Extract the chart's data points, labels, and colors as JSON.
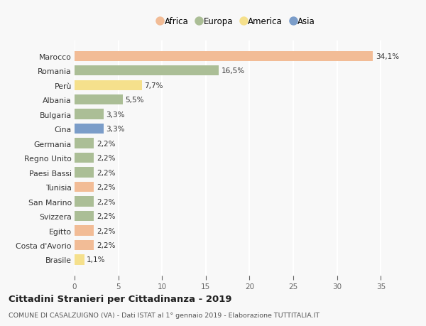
{
  "countries": [
    "Marocco",
    "Romania",
    "Perù",
    "Albania",
    "Bulgaria",
    "Cina",
    "Germania",
    "Regno Unito",
    "Paesi Bassi",
    "Tunisia",
    "San Marino",
    "Svizzera",
    "Egitto",
    "Costa d'Avorio",
    "Brasile"
  ],
  "values": [
    34.1,
    16.5,
    7.7,
    5.5,
    3.3,
    3.3,
    2.2,
    2.2,
    2.2,
    2.2,
    2.2,
    2.2,
    2.2,
    2.2,
    1.1
  ],
  "labels": [
    "34,1%",
    "16,5%",
    "7,7%",
    "5,5%",
    "3,3%",
    "3,3%",
    "2,2%",
    "2,2%",
    "2,2%",
    "2,2%",
    "2,2%",
    "2,2%",
    "2,2%",
    "2,2%",
    "1,1%"
  ],
  "colors": [
    "#F2BC96",
    "#ABBE96",
    "#F5E08C",
    "#ABBE96",
    "#ABBE96",
    "#7B9DC9",
    "#ABBE96",
    "#ABBE96",
    "#ABBE96",
    "#F2BC96",
    "#ABBE96",
    "#ABBE96",
    "#F2BC96",
    "#F2BC96",
    "#F5E08C"
  ],
  "legend_labels": [
    "Africa",
    "Europa",
    "America",
    "Asia"
  ],
  "legend_colors": [
    "#F2BC96",
    "#ABBE96",
    "#F5E08C",
    "#7B9DC9"
  ],
  "xlim": [
    0,
    37
  ],
  "xticks": [
    0,
    5,
    10,
    15,
    20,
    25,
    30,
    35
  ],
  "title": "Cittadini Stranieri per Cittadinanza - 2019",
  "subtitle": "COMUNE DI CASALZUIGNO (VA) - Dati ISTAT al 1° gennaio 2019 - Elaborazione TUTTITALIA.IT",
  "background_color": "#F8F8F8",
  "grid_color": "#FFFFFF",
  "bar_height": 0.7
}
